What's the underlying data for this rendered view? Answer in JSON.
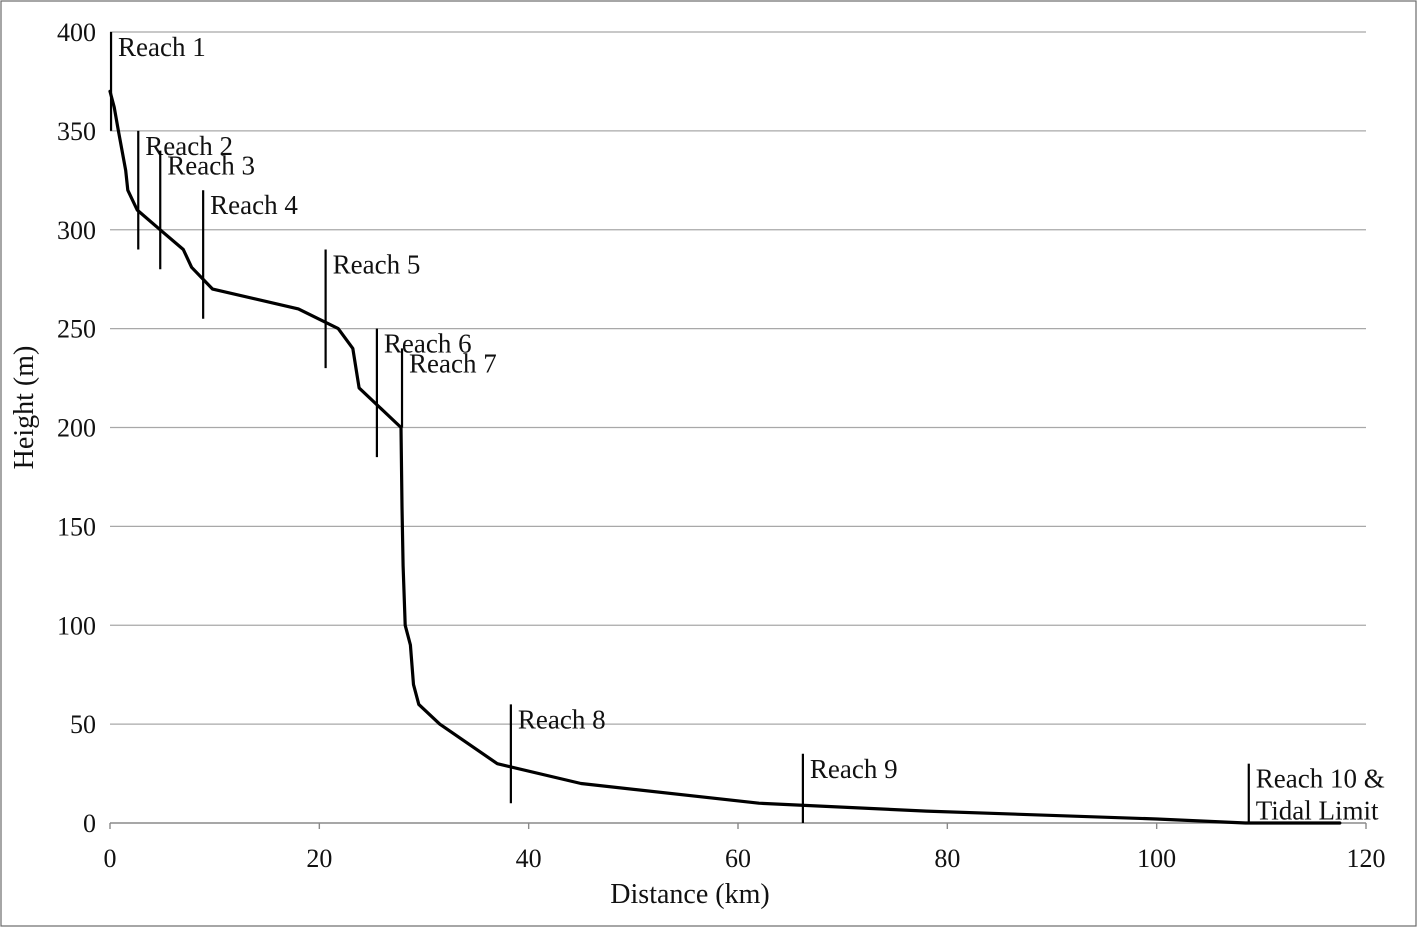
{
  "chart_data": {
    "type": "line",
    "xlabel": "Distance (km)",
    "ylabel": "Height (m)",
    "xlim": [
      0,
      120
    ],
    "ylim": [
      0,
      400
    ],
    "x_ticks": [
      0,
      20,
      40,
      60,
      80,
      100,
      120
    ],
    "y_ticks": [
      0,
      50,
      100,
      150,
      200,
      250,
      300,
      350,
      400
    ],
    "grid": "horizontal",
    "series": [
      {
        "color": "#000000",
        "x": [
          0,
          0.4,
          0.8,
          1.5,
          1.7,
          2.6,
          4.8,
          7.0,
          7.8,
          9.8,
          18.0,
          21.8,
          23.2,
          23.8,
          27.8,
          27.9,
          28.0,
          28.2,
          28.7,
          29.0,
          29.5,
          31.5,
          37.0,
          45.0,
          62.0,
          78.0,
          100.0,
          108.5,
          117.5
        ],
        "values": [
          370,
          362,
          350,
          330,
          320,
          310,
          300,
          290,
          281,
          270,
          260,
          250,
          240,
          220,
          200,
          160,
          130,
          100,
          90,
          70,
          60,
          50,
          30,
          20,
          10,
          6,
          2,
          0,
          0
        ]
      }
    ],
    "reach_markers": [
      {
        "label": "Reach 1",
        "x": 0.1,
        "y_top": 400,
        "y_bottom": 350
      },
      {
        "label": "Reach 2",
        "x": 2.7,
        "y_top": 350,
        "y_bottom": 290
      },
      {
        "label": "Reach 3",
        "x": 4.8,
        "y_top": 340,
        "y_bottom": 280
      },
      {
        "label": "Reach 4",
        "x": 8.9,
        "y_top": 320,
        "y_bottom": 255
      },
      {
        "label": "Reach 5",
        "x": 20.6,
        "y_top": 290,
        "y_bottom": 230
      },
      {
        "label": "Reach 6",
        "x": 25.5,
        "y_top": 250,
        "y_bottom": 185
      },
      {
        "label": "Reach 7",
        "x": 27.9,
        "y_top": 240,
        "y_bottom": 200
      },
      {
        "label": "Reach 8",
        "x": 38.3,
        "y_top": 60,
        "y_bottom": 10
      },
      {
        "label": "Reach 9",
        "x": 66.2,
        "y_top": 35,
        "y_bottom": 0
      },
      {
        "label": "Reach 10 &\nTidal Limit",
        "x": 108.8,
        "y_top": 30,
        "y_bottom": 0
      }
    ]
  }
}
